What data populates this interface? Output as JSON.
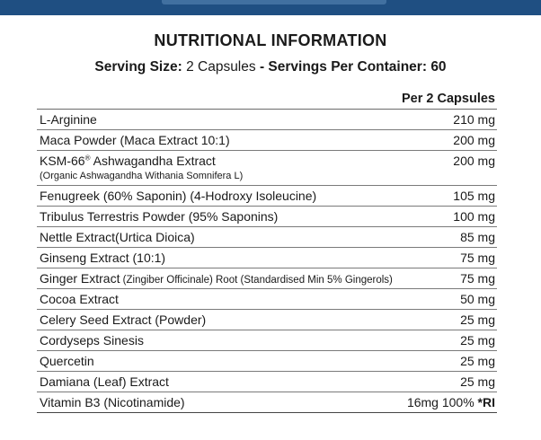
{
  "header": {
    "title": "NUTRITIONAL INFORMATION",
    "serving_size_label": "Serving Size:",
    "serving_size_value": "2 Capsules",
    "separator": "-",
    "servings_label": "Servings Per Container:",
    "servings_value": "60"
  },
  "colors": {
    "top_band": "#1f4f82",
    "text": "#1a1a1a",
    "rule": "#7a7a7a"
  },
  "table": {
    "column_header": "Per 2 Capsules",
    "rows": [
      {
        "name": "L-Arginine",
        "amount": "210 mg"
      },
      {
        "name": "Maca Powder (Maca Extract 10:1)",
        "amount": "200 mg"
      },
      {
        "name": "KSM-66",
        "mark": "®",
        "name_rest": " Ashwagandha Extract",
        "sub": "(Organic Ashwagandha Withania Somnifera L)",
        "amount": "200 mg"
      },
      {
        "name": "Fenugreek (60% Saponin) (4-Hodroxy Isoleucine)",
        "amount": "105 mg"
      },
      {
        "name": "Tribulus Terrestris Powder (95% Saponins)",
        "amount": "100 mg"
      },
      {
        "name": "Nettle Extract(Urtica Dioica)",
        "amount": "85 mg"
      },
      {
        "name": "Ginseng Extract (10:1)",
        "amount": "75 mg"
      },
      {
        "name": "Ginger Extract",
        "note": " (Zingiber Officinale) Root (Standardised Min 5% Gingerols)",
        "amount": "75 mg"
      },
      {
        "name": "Cocoa Extract",
        "amount": "50 mg"
      },
      {
        "name": "Celery Seed Extract (Powder)",
        "amount": "25 mg"
      },
      {
        "name": "Cordyseps Sinesis",
        "amount": "25 mg"
      },
      {
        "name": "Quercetin",
        "amount": "25 mg"
      },
      {
        "name": "Damiana (Leaf) Extract",
        "amount": "25 mg"
      },
      {
        "name": "Vitamin B3 (Nicotinamide)",
        "amount": "16mg 100%",
        "amount_suffix": " *RI"
      }
    ]
  }
}
